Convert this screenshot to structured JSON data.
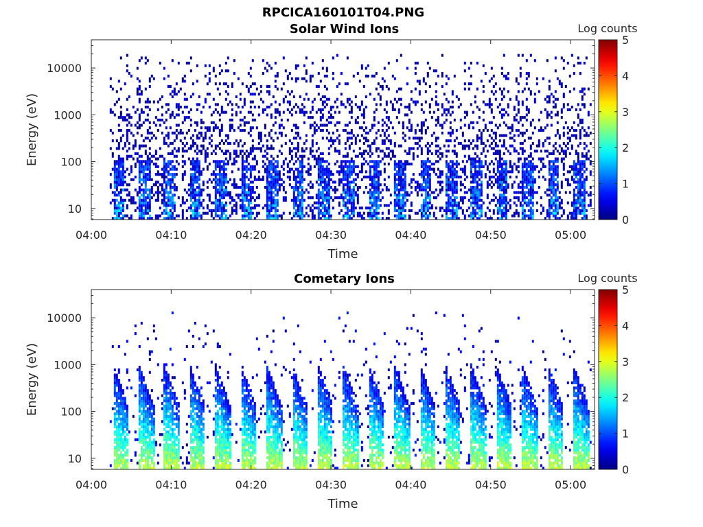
{
  "figure": {
    "title": "RPCICA160101T04.PNG"
  },
  "colors": {
    "colormap": [
      "#00008f",
      "#0000ff",
      "#0080ff",
      "#00ffff",
      "#80ff80",
      "#ffff00",
      "#ff8000",
      "#ff0000",
      "#800000"
    ],
    "axis": "#262626"
  },
  "chart_data": [
    {
      "type": "heatmap",
      "title": "Solar Wind Ions",
      "xlabel": "Time",
      "ylabel": "Energy (eV)",
      "x_ticks": [
        "04:00",
        "04:10",
        "04:20",
        "04:30",
        "04:40",
        "04:50",
        "05:00"
      ],
      "x_range_minutes": [
        0,
        63
      ],
      "y_scale": "log",
      "y_ticks": [
        "10",
        "100",
        "1000",
        "10000"
      ],
      "y_range": [
        5.8,
        40000
      ],
      "colorbar": {
        "label": "Log counts",
        "ticks": [
          "0",
          "1",
          "2",
          "3",
          "4",
          "5"
        ],
        "range": [
          0,
          5
        ]
      },
      "data_start_minute": 2.3,
      "data_end_minute": 62.6,
      "description_of_pattern": "sparse low-count (~0-0.5) scatter from 100 eV to 20000 eV; periodic bands of 0.5-2 log counts below 100 eV, period about 3.2 min"
    },
    {
      "type": "heatmap",
      "title": "Cometary Ions",
      "xlabel": "Time",
      "ylabel": "Energy (eV)",
      "x_ticks": [
        "04:00",
        "04:10",
        "04:20",
        "04:30",
        "04:40",
        "04:50",
        "05:00"
      ],
      "x_range_minutes": [
        0,
        63
      ],
      "y_scale": "log",
      "y_ticks": [
        "10",
        "100",
        "1000",
        "10000"
      ],
      "y_range": [
        5.8,
        40000
      ],
      "colorbar": {
        "label": "Log counts",
        "ticks": [
          "0",
          "1",
          "2",
          "3",
          "4",
          "5"
        ],
        "range": [
          0,
          5
        ]
      },
      "data_start_minute": 2.3,
      "data_end_minute": 62.6,
      "description_of_pattern": "periodic dispersed structures, peak 2-3 log counts near 10-50 eV, extending up to ~1000 eV, period about 3.2 min; sparse counts up to 10000 eV"
    }
  ]
}
